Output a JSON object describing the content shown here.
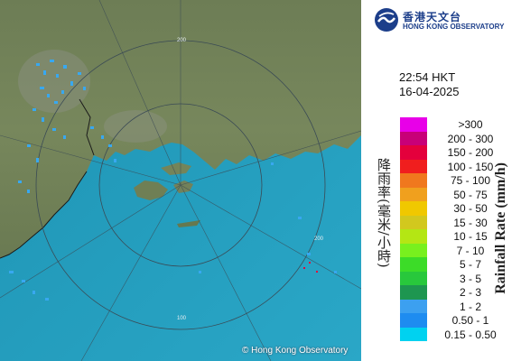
{
  "header": {
    "logo_zh": "香港天文台",
    "logo_en": "HONG KONG OBSERVATORY"
  },
  "timestamp": {
    "time": "22:54 HKT",
    "date": "16-04-2025"
  },
  "legend": {
    "title_zh": "降雨率(毫米/小時)",
    "title_en": "Rainfall Rate (mm/h)",
    "items": [
      {
        "range": ">300",
        "color": "#e800e8"
      },
      {
        "range": "200 - 300",
        "color": "#c80078"
      },
      {
        "range": "150 - 200",
        "color": "#e4003c"
      },
      {
        "range": "100 - 150",
        "color": "#f01e1e"
      },
      {
        "range": "75 - 100",
        "color": "#f0781e"
      },
      {
        "range": "50 - 75",
        "color": "#f0a01e"
      },
      {
        "range": "30 - 50",
        "color": "#f0c800"
      },
      {
        "range": "15 - 30",
        "color": "#d2c81e"
      },
      {
        "range": "10 - 15",
        "color": "#b4e614"
      },
      {
        "range": "7 - 10",
        "color": "#78f01e"
      },
      {
        "range": "5 - 7",
        "color": "#3cdc28"
      },
      {
        "range": "3 - 5",
        "color": "#28c83c"
      },
      {
        "range": "2 - 3",
        "color": "#1e9650"
      },
      {
        "range": "1 - 2",
        "color": "#3ca0f0"
      },
      {
        "range": "0.50 - 1",
        "color": "#1e8cf0"
      },
      {
        "range": "0.15 - 0.50",
        "color": "#00d2f0"
      }
    ]
  },
  "map": {
    "copyright": "© Hong Kong Observatory",
    "ring_labels": [
      "200",
      "200",
      "100"
    ]
  }
}
